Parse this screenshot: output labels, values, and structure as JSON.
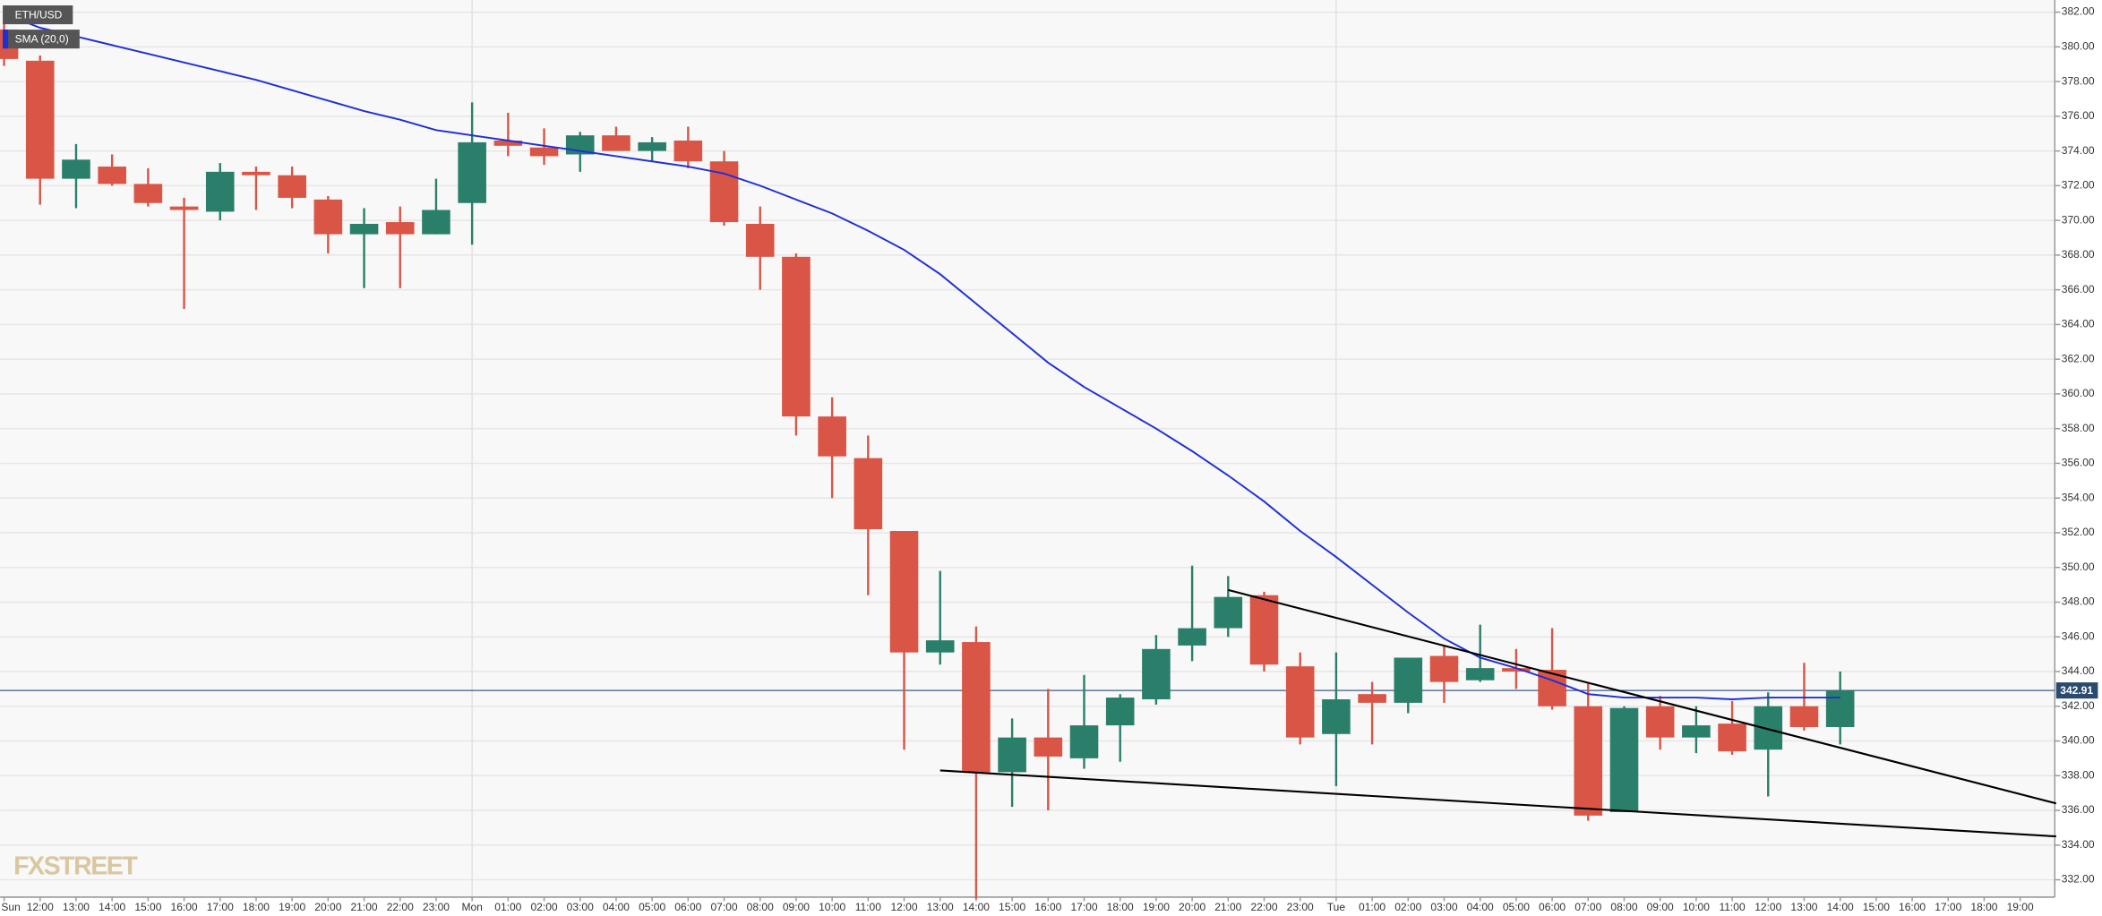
{
  "chart_data": {
    "type": "candlestick",
    "title": "ETH/USD",
    "watermark": "FXSTREET",
    "categories": [
      "Sun",
      "12:00",
      "13:00",
      "14:00",
      "15:00",
      "16:00",
      "17:00",
      "18:00",
      "19:00",
      "20:00",
      "21:00",
      "22:00",
      "23:00",
      "Mon",
      "01:00",
      "02:00",
      "03:00",
      "04:00",
      "05:00",
      "06:00",
      "07:00",
      "08:00",
      "09:00",
      "10:00",
      "11:00",
      "12:00",
      "13:00",
      "14:00",
      "15:00",
      "16:00",
      "17:00",
      "18:00",
      "19:00",
      "20:00",
      "21:00",
      "22:00",
      "23:00",
      "Tue",
      "01:00",
      "02:00",
      "03:00",
      "04:00",
      "05:00",
      "06:00",
      "07:00",
      "08:00",
      "09:00",
      "10:00",
      "11:00",
      "12:00",
      "13:00",
      "14:00",
      "15:00",
      "16:00",
      "17:00",
      "18:00",
      "19:00"
    ],
    "open": [
      381.0,
      379.2,
      372.4,
      373.1,
      372.1,
      370.8,
      370.5,
      372.8,
      372.6,
      371.2,
      369.2,
      369.9,
      369.2,
      371.0,
      374.6,
      374.2,
      373.8,
      374.9,
      374.0,
      374.6,
      373.4,
      369.8,
      367.9,
      358.7,
      356.3,
      352.1,
      345.1,
      345.7,
      338.2,
      340.2,
      339.0,
      340.9,
      342.4,
      345.5,
      346.5,
      348.4,
      344.3,
      340.4,
      342.7,
      342.2,
      344.9,
      343.5,
      344.2,
      344.1,
      342.0,
      335.9,
      342.0,
      340.2,
      341.0,
      339.5,
      342.0,
      340.8,
      null,
      null,
      null,
      null,
      null
    ],
    "high": [
      382.0,
      379.5,
      374.4,
      373.8,
      373.0,
      371.3,
      373.3,
      373.1,
      373.1,
      371.4,
      370.7,
      370.8,
      372.4,
      376.8,
      376.2,
      375.3,
      375.1,
      375.4,
      374.8,
      375.4,
      374.0,
      370.8,
      368.1,
      359.8,
      357.6,
      352.1,
      349.8,
      346.6,
      341.3,
      343.0,
      343.8,
      342.7,
      346.1,
      350.1,
      349.5,
      348.6,
      345.1,
      345.1,
      343.4,
      344.8,
      345.5,
      346.7,
      345.3,
      346.5,
      343.3,
      342.0,
      342.6,
      342.0,
      342.3,
      342.8,
      344.5,
      344.0,
      null,
      null,
      null,
      null,
      null
    ],
    "low": [
      378.9,
      370.9,
      370.7,
      372.0,
      370.8,
      364.9,
      370.0,
      370.6,
      370.7,
      368.1,
      366.1,
      366.1,
      369.2,
      368.6,
      373.7,
      373.2,
      372.8,
      374.0,
      373.4,
      373.0,
      369.7,
      366.0,
      357.6,
      354.0,
      348.4,
      339.5,
      344.4,
      330.9,
      336.2,
      336.0,
      338.4,
      338.8,
      342.1,
      344.6,
      346.0,
      344.0,
      339.8,
      337.4,
      339.8,
      341.6,
      342.2,
      343.4,
      343.0,
      341.8,
      335.4,
      335.9,
      339.5,
      339.3,
      339.2,
      336.8,
      340.6,
      339.8,
      null,
      null,
      null,
      null,
      null
    ],
    "close": [
      379.3,
      372.4,
      373.5,
      372.1,
      371.0,
      370.6,
      372.8,
      372.6,
      371.3,
      369.2,
      369.8,
      369.2,
      370.6,
      374.5,
      374.3,
      373.7,
      374.9,
      374.0,
      374.5,
      373.4,
      369.9,
      367.9,
      358.7,
      356.4,
      352.2,
      345.1,
      345.8,
      338.2,
      340.2,
      339.1,
      340.9,
      342.5,
      345.3,
      346.5,
      348.3,
      344.4,
      340.2,
      342.4,
      342.2,
      344.8,
      343.4,
      344.2,
      344.0,
      342.0,
      335.7,
      341.9,
      340.2,
      340.9,
      339.4,
      342.0,
      340.8,
      342.9,
      null,
      null,
      null,
      null,
      null
    ],
    "up_color": "#2a7f6a",
    "down_color": "#d95545",
    "overlays": [
      {
        "name": "SMA (20,0)",
        "color": "#1f2fd8",
        "values": [
          381.9,
          381.1,
          380.6,
          380.1,
          379.6,
          379.1,
          378.6,
          378.1,
          377.5,
          376.9,
          376.3,
          375.8,
          375.2,
          374.9,
          374.6,
          374.3,
          374.0,
          373.7,
          373.4,
          373.1,
          372.7,
          372.0,
          371.2,
          370.4,
          369.4,
          368.3,
          366.9,
          365.2,
          363.5,
          361.8,
          360.4,
          359.2,
          358.0,
          356.7,
          355.3,
          353.8,
          352.1,
          350.6,
          349.0,
          347.4,
          345.9,
          344.8,
          344.2,
          343.5,
          342.7,
          342.5,
          342.5,
          342.5,
          342.4,
          342.5,
          342.5,
          342.5,
          null,
          null,
          null,
          null,
          null
        ]
      }
    ],
    "trendlines": [
      {
        "color": "#000000",
        "x": [
          34,
          57
        ],
        "y": [
          348.7,
          336.4
        ]
      },
      {
        "color": "#000000",
        "x": [
          26,
          57
        ],
        "y": [
          338.3,
          334.5
        ]
      }
    ],
    "last_price": 342.91,
    "ylim": [
      331,
      382.7
    ],
    "yticks": [
      {
        "value": 332,
        "label": "332.00"
      },
      {
        "value": 334,
        "label": "334.00"
      },
      {
        "value": 336,
        "label": "336.00"
      },
      {
        "value": 338,
        "label": "338.00"
      },
      {
        "value": 340,
        "label": "340.00"
      },
      {
        "value": 342,
        "label": "342.00"
      },
      {
        "value": 344,
        "label": "344.00"
      },
      {
        "value": 346,
        "label": "346.00"
      },
      {
        "value": 348,
        "label": "348.00"
      },
      {
        "value": 350,
        "label": "350.00"
      },
      {
        "value": 352,
        "label": "352.00"
      },
      {
        "value": 354,
        "label": "354.00"
      },
      {
        "value": 356,
        "label": "356.00"
      },
      {
        "value": 358,
        "label": "358.00"
      },
      {
        "value": 360,
        "label": "360.00"
      },
      {
        "value": 362,
        "label": "362.00"
      },
      {
        "value": 364,
        "label": "364.00"
      },
      {
        "value": 366,
        "label": "366.00"
      },
      {
        "value": 368,
        "label": "368.00"
      },
      {
        "value": 370,
        "label": "370.00"
      },
      {
        "value": 372,
        "label": "372.00"
      },
      {
        "value": 374,
        "label": "374.00"
      },
      {
        "value": 376,
        "label": "376.00"
      },
      {
        "value": 378,
        "label": "378.00"
      },
      {
        "value": 380,
        "label": "380.00"
      },
      {
        "value": 382,
        "label": "382.00"
      }
    ],
    "grid": true
  }
}
